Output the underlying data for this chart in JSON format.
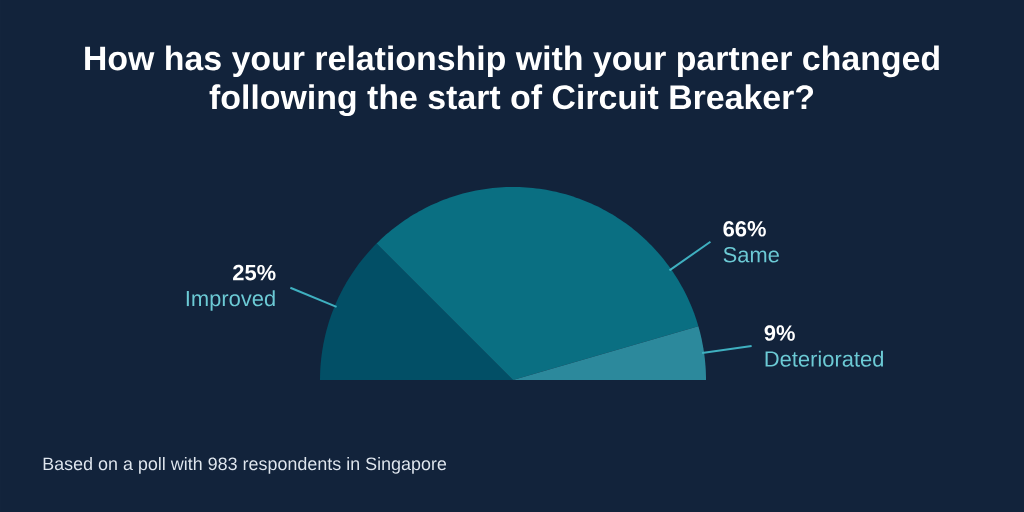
{
  "chart_data": {
    "type": "pie",
    "title": "How has your relationship with your partner changed following the start of Circuit Breaker?",
    "categories": [
      "Improved",
      "Same",
      "Deteriorated"
    ],
    "values": [
      25,
      66,
      9
    ],
    "colors": [
      "#024f66",
      "#0a6f82",
      "#2c899c"
    ],
    "value_labels": [
      "25%",
      "66%",
      "9%"
    ],
    "annotations": [
      "Based on a poll with 983 respondents in Singapore"
    ]
  }
}
